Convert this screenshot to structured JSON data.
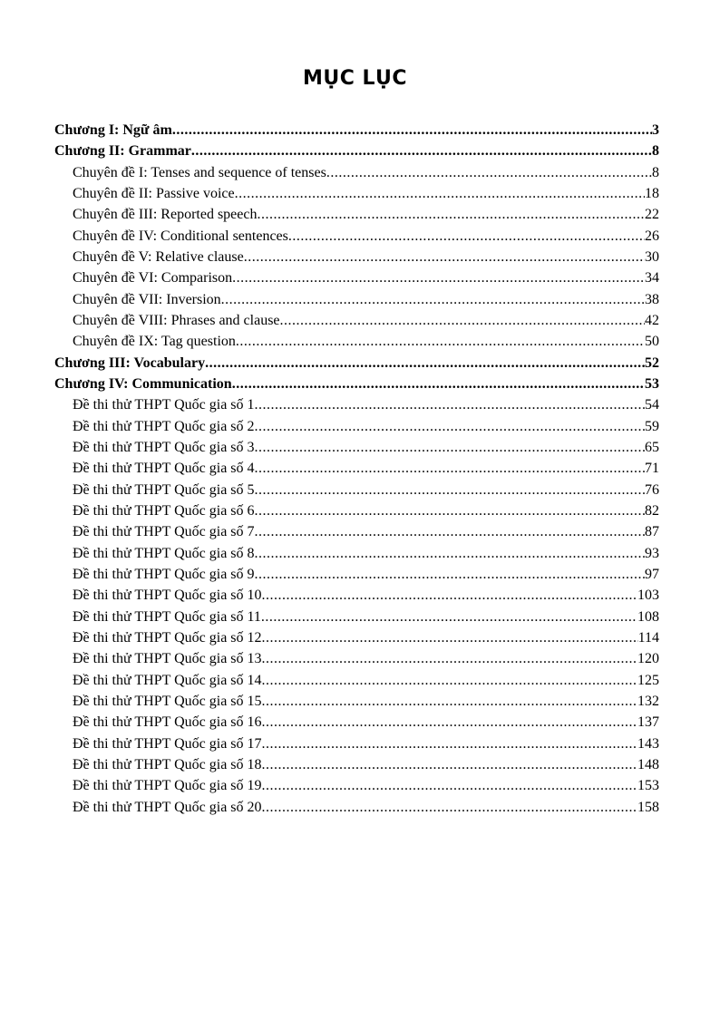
{
  "title": "MỤC LỤC",
  "entries": [
    {
      "label": "Chương I: Ngữ âm",
      "page": "3",
      "level": 1
    },
    {
      "label": "Chương II: Grammar",
      "page": "8",
      "level": 1
    },
    {
      "label": "Chuyên đề I: Tenses and sequence of tenses",
      "page": "8",
      "level": 2
    },
    {
      "label": "Chuyên đề II: Passive voice",
      "page": "18",
      "level": 2
    },
    {
      "label": "Chuyên đề III: Reported speech",
      "page": "22",
      "level": 2
    },
    {
      "label": "Chuyên đề IV: Conditional sentences",
      "page": "26",
      "level": 2
    },
    {
      "label": "Chuyên đề V: Relative clause",
      "page": "30",
      "level": 2
    },
    {
      "label": "Chuyên đề VI: Comparison",
      "page": "34",
      "level": 2
    },
    {
      "label": "Chuyên đề VII: Inversion",
      "page": "38",
      "level": 2
    },
    {
      "label": "Chuyên đề VIII: Phrases and clause",
      "page": "42",
      "level": 2
    },
    {
      "label": "Chuyên đề IX: Tag question",
      "page": "50",
      "level": 2
    },
    {
      "label": "Chương III: Vocabulary",
      "page": "52",
      "level": 1
    },
    {
      "label": "Chương IV: Communication",
      "page": "53",
      "level": 1
    },
    {
      "label": "Đề thi thử THPT Quốc gia số 1",
      "page": "54",
      "level": 2
    },
    {
      "label": "Đề thi thử THPT Quốc gia số 2",
      "page": "59",
      "level": 2
    },
    {
      "label": "Đề thi thử THPT Quốc gia số 3",
      "page": "65",
      "level": 2
    },
    {
      "label": "Đề thi thử THPT Quốc gia số 4",
      "page": "71",
      "level": 2
    },
    {
      "label": "Đề thi thử THPT Quốc gia số 5",
      "page": "76",
      "level": 2
    },
    {
      "label": "Đề thi thử THPT Quốc gia số 6",
      "page": "82",
      "level": 2
    },
    {
      "label": "Đề thi thử THPT Quốc gia số 7",
      "page": "87",
      "level": 2
    },
    {
      "label": "Đề thi thử THPT Quốc gia số 8",
      "page": "93",
      "level": 2
    },
    {
      "label": "Đề thi thử THPT Quốc gia số 9",
      "page": "97",
      "level": 2
    },
    {
      "label": "Đề thi thử THPT Quốc gia số 10",
      "page": "103",
      "level": 2
    },
    {
      "label": "Đề thi thử THPT Quốc gia số 11",
      "page": "108",
      "level": 2
    },
    {
      "label": "Đề thi thử THPT Quốc gia số 12",
      "page": "114",
      "level": 2
    },
    {
      "label": "Đề thi thử THPT Quốc gia số 13",
      "page": "120",
      "level": 2
    },
    {
      "label": "Đề thi thử THPT Quốc gia số 14",
      "page": "125",
      "level": 2
    },
    {
      "label": "Đề thi thử THPT Quốc gia số 15",
      "page": "132",
      "level": 2
    },
    {
      "label": "Đề thi thử THPT Quốc gia số 16",
      "page": "137",
      "level": 2
    },
    {
      "label": "Đề thi thử THPT Quốc gia số 17",
      "page": "143",
      "level": 2
    },
    {
      "label": "Đề thi thử THPT Quốc gia số 18",
      "page": "148",
      "level": 2
    },
    {
      "label": "Đề thi thử THPT Quốc gia số 19",
      "page": "153",
      "level": 2
    },
    {
      "label": "Đề thi thử THPT Quốc gia số 20",
      "page": "158",
      "level": 2
    }
  ]
}
